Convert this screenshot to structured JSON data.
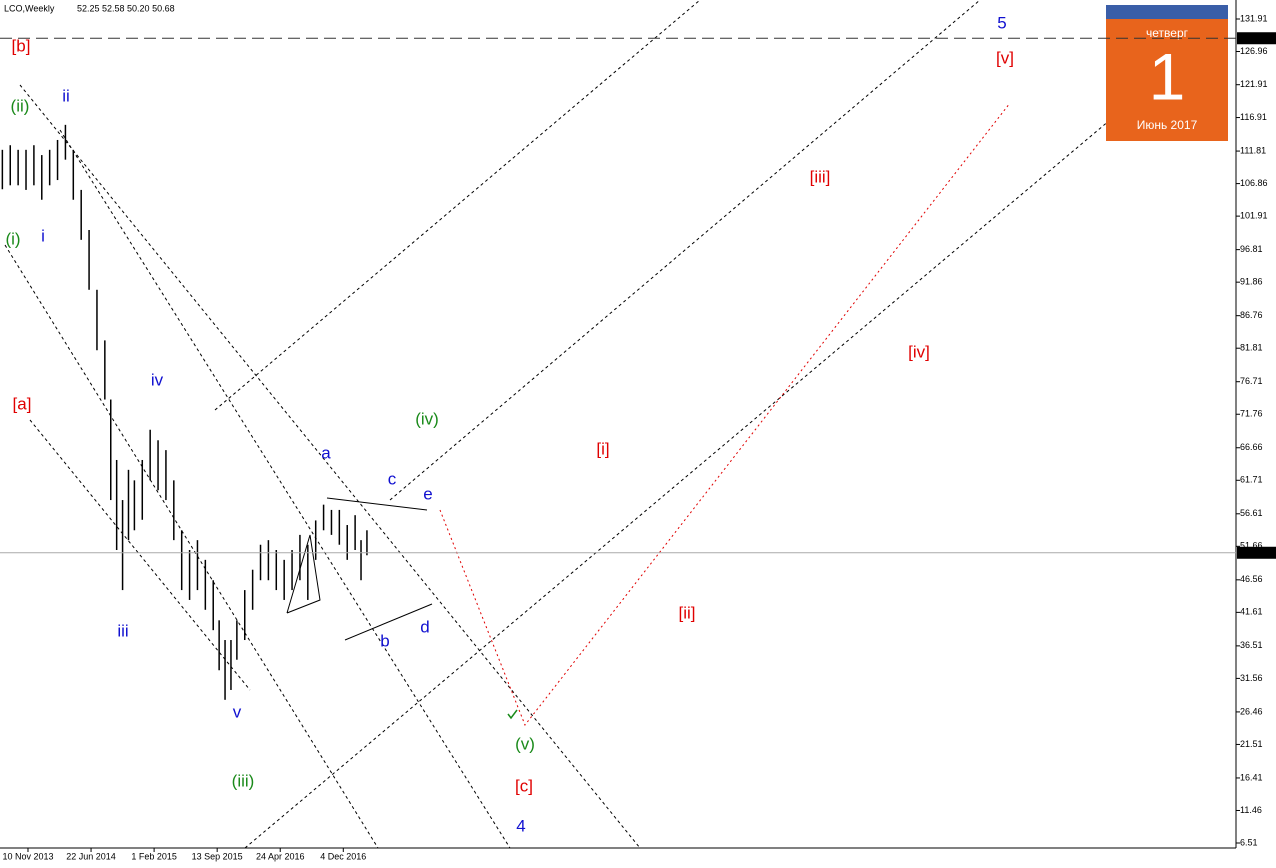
{
  "header": {
    "symbol": "LCO,Weekly",
    "quote": "52.25 52.58 50.20 50.68"
  },
  "calendar": {
    "weekday": "четверг",
    "day": "1",
    "month": "Июнь 2017"
  },
  "chart_data": {
    "type": "ohlc",
    "x": [
      -13,
      -9,
      -5,
      -1,
      3,
      7,
      11,
      15,
      19,
      23,
      27,
      31,
      35,
      39,
      42,
      45,
      48,
      51,
      54,
      58,
      62,
      66,
      70,
      74,
      78,
      82,
      86,
      90,
      94,
      97,
      100,
      103,
      106,
      110,
      114,
      118,
      122,
      126,
      130,
      134,
      138,
      142,
      146,
      150,
      154,
      158,
      162,
      166,
      169,
      172
    ],
    "high": [
      112.0,
      112.7,
      112.0,
      112.0,
      112.7,
      111.2,
      112.0,
      113.5,
      115.8,
      112.0,
      105.9,
      99.8,
      90.7,
      83.0,
      74.0,
      64.8,
      58.7,
      63.3,
      61.7,
      64.8,
      69.4,
      67.8,
      66.3,
      61.7,
      54.1,
      51.1,
      52.6,
      49.6,
      46.5,
      40.4,
      37.4,
      37.4,
      40.4,
      45.0,
      48.1,
      51.9,
      52.6,
      51.1,
      49.6,
      51.1,
      53.4,
      51.9,
      55.6,
      58.0,
      57.2,
      57.2,
      54.9,
      56.4,
      52.6,
      54.1
    ],
    "low": [
      106.0,
      106.6,
      106.6,
      105.9,
      106.6,
      104.4,
      106.6,
      107.4,
      110.5,
      104.4,
      98.3,
      90.7,
      81.5,
      74.0,
      58.7,
      51.1,
      45.0,
      52.6,
      54.1,
      55.7,
      61.7,
      60.2,
      58.7,
      52.6,
      45.0,
      43.5,
      45.0,
      42.0,
      38.9,
      32.8,
      28.3,
      29.8,
      34.4,
      37.4,
      42.0,
      46.5,
      46.5,
      45.0,
      43.5,
      45.0,
      46.5,
      43.5,
      49.6,
      54.1,
      53.4,
      51.9,
      49.6,
      51.1,
      46.5,
      50.3
    ],
    "color": "#000000",
    "xlim": [
      -14.2,
      613
    ],
    "ylim": [
      5.75,
      134.8
    ],
    "xticks": [
      {
        "value": 0,
        "label": "10 Nov 2013"
      },
      {
        "value": 32,
        "label": "22 Jun 2014"
      },
      {
        "value": 64,
        "label": "1 Feb 2015"
      },
      {
        "value": 96,
        "label": "13 Sep 2015"
      },
      {
        "value": 128,
        "label": "24 Apr 2016"
      },
      {
        "value": 160,
        "label": "4 Dec 2016"
      }
    ],
    "yticks": [
      131.91,
      126.96,
      121.91,
      116.91,
      111.81,
      106.86,
      101.91,
      96.81,
      91.86,
      86.76,
      81.81,
      76.71,
      71.76,
      66.66,
      61.71,
      56.61,
      51.66,
      46.56,
      41.61,
      36.51,
      31.56,
      26.46,
      21.51,
      16.41,
      11.46,
      6.51
    ],
    "current_price": 50.68,
    "marked_level": 128.98,
    "annotations": [
      "[b]",
      "(ii)",
      "ii",
      "(i)",
      "i",
      "[a]",
      "iv",
      "iii",
      "v",
      "(iii)",
      "a",
      "c",
      "e",
      "(iv)",
      "b",
      "d",
      "(v)",
      "[c]",
      "4",
      "[i]",
      "[ii]",
      "[iii]",
      "[iv]",
      "[v]",
      "5"
    ]
  }
}
